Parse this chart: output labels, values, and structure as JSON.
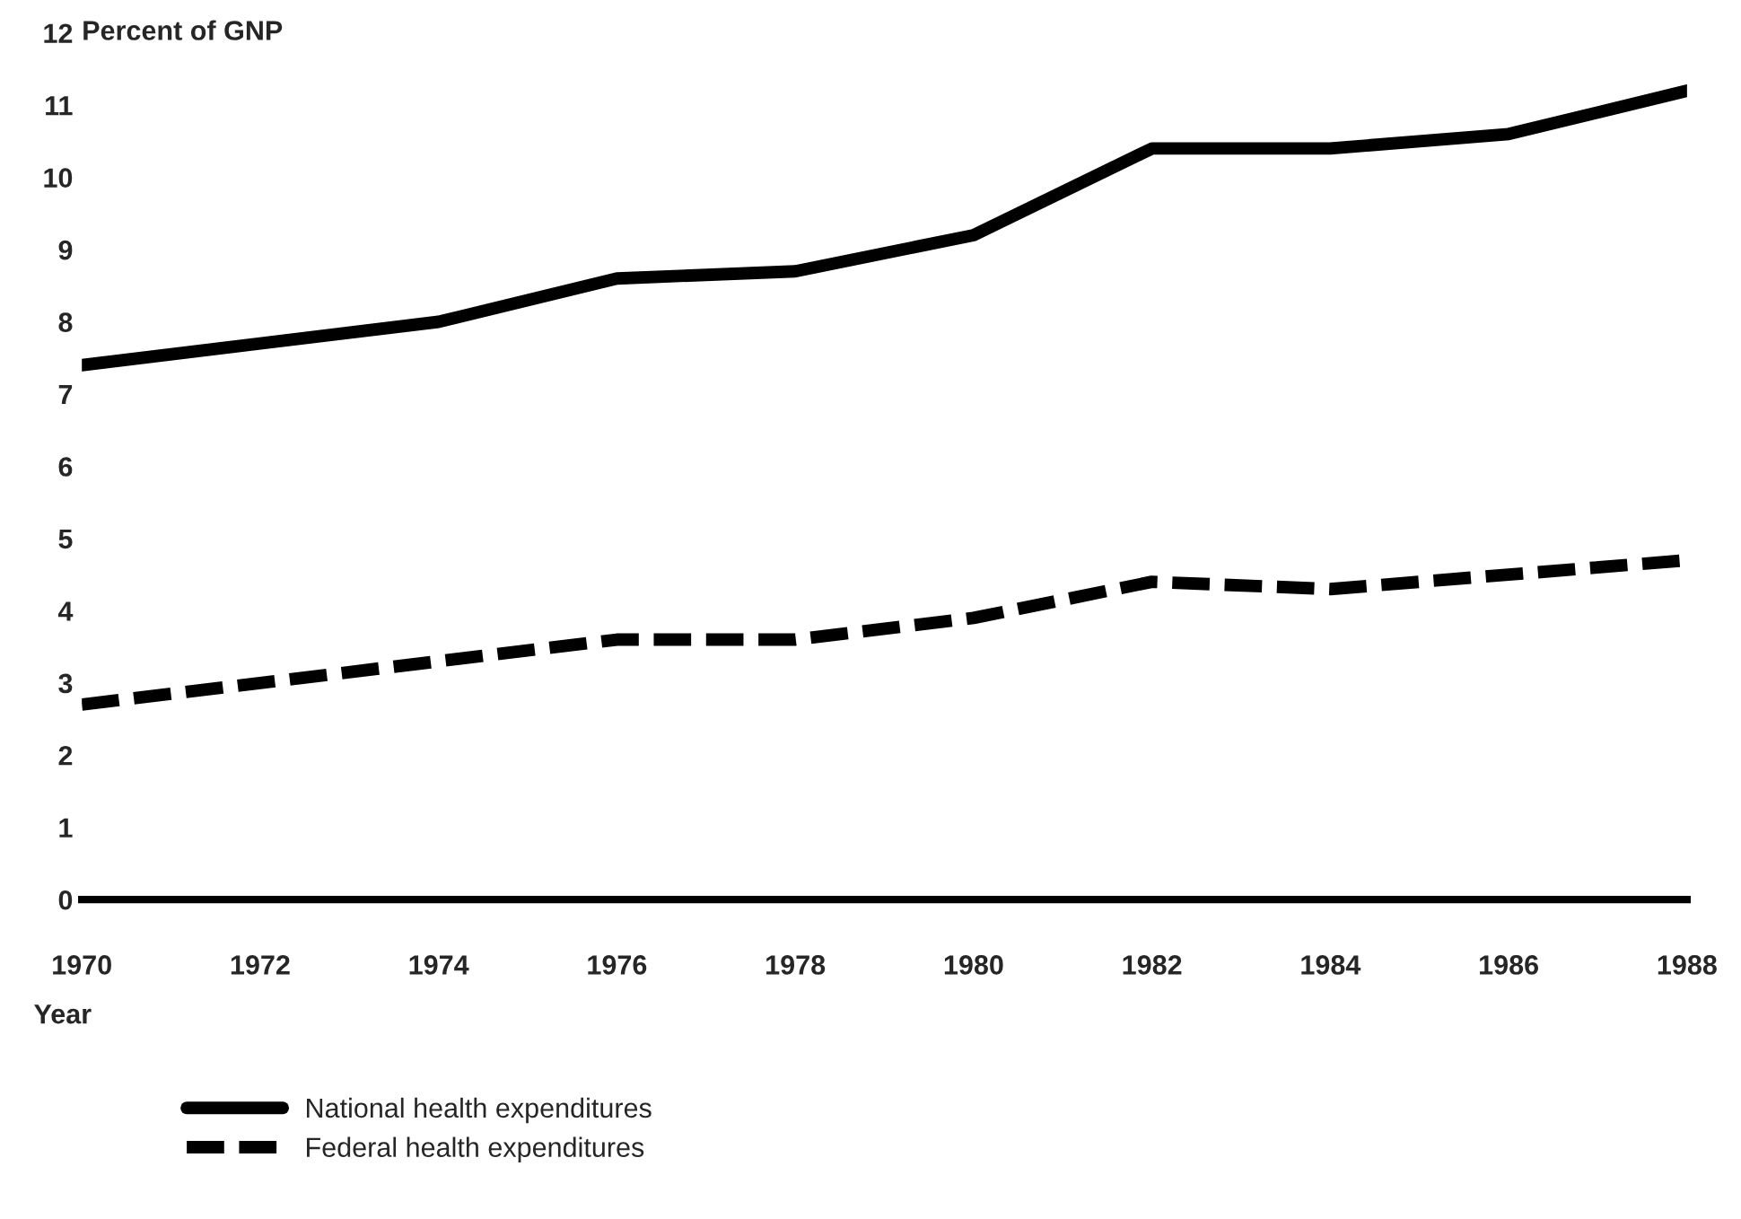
{
  "chart_data": {
    "type": "line",
    "ylabel": "Percent of GNP",
    "xlabel": "Year",
    "x": [
      1970,
      1972,
      1974,
      1976,
      1978,
      1980,
      1982,
      1984,
      1986,
      1988
    ],
    "series": [
      {
        "name": "National health expenditures",
        "color": "#000000",
        "line_style": "solid",
        "values": [
          7.4,
          7.7,
          8.0,
          8.6,
          8.7,
          9.2,
          10.4,
          10.4,
          10.6,
          11.2
        ]
      },
      {
        "name": "Federal health expenditures",
        "color": "#000000",
        "line_style": "dashed",
        "values": [
          2.7,
          3.0,
          3.3,
          3.6,
          3.6,
          3.9,
          4.4,
          4.3,
          4.5,
          4.7
        ]
      }
    ],
    "xlim": [
      1970,
      1988
    ],
    "xticks": [
      1970,
      1972,
      1974,
      1976,
      1978,
      1980,
      1982,
      1984,
      1986,
      1988
    ],
    "ylim": [
      0,
      12
    ],
    "yticks": [
      0,
      1,
      2,
      3,
      4,
      5,
      6,
      7,
      8,
      9,
      10,
      11,
      12
    ],
    "grid": false,
    "legend": "bottom left",
    "marker": "none"
  }
}
